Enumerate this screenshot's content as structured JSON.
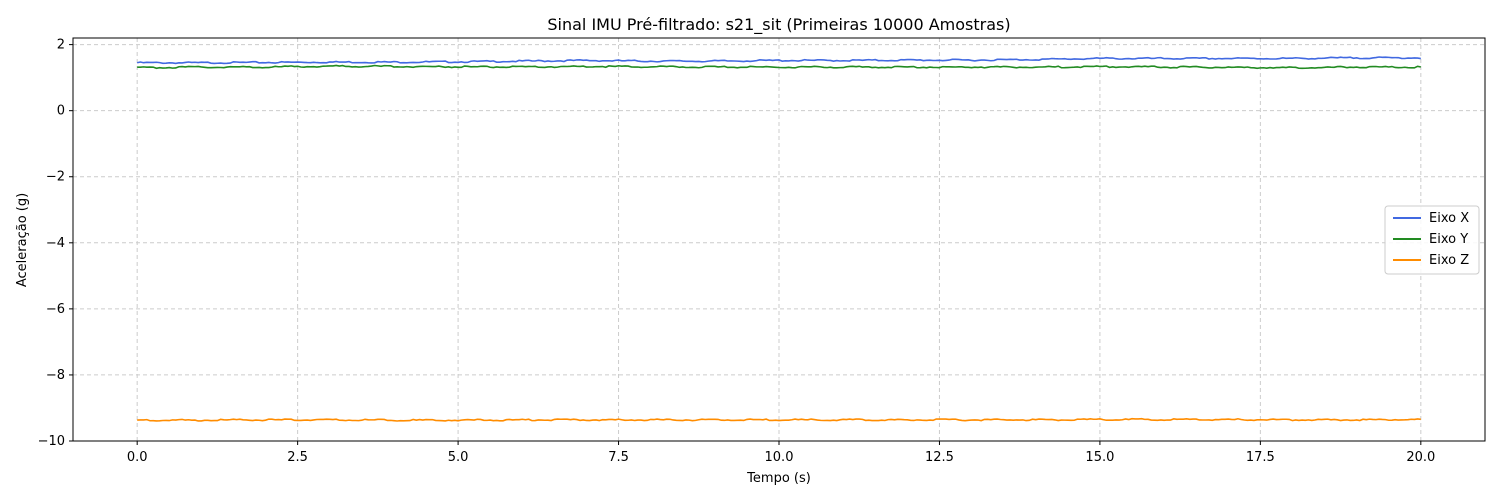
{
  "chart_data": {
    "type": "line",
    "title": "Sinal IMU Pré-filtrado: s21_sit (Primeiras 10000 Amostras)",
    "xlabel": "Tempo (s)",
    "ylabel": "Aceleração (g)",
    "xlim": [
      -1.0,
      21.0
    ],
    "ylim": [
      -10.0,
      2.2
    ],
    "xticks": [
      0.0,
      2.5,
      5.0,
      7.5,
      10.0,
      12.5,
      15.0,
      17.5,
      20.0
    ],
    "xtick_labels": [
      "0.0",
      "2.5",
      "5.0",
      "7.5",
      "10.0",
      "12.5",
      "15.0",
      "17.5",
      "20.0"
    ],
    "yticks": [
      2,
      0,
      -2,
      -4,
      -6,
      -8,
      -10
    ],
    "ytick_labels": [
      "2",
      "0",
      "−2",
      "−4",
      "−6",
      "−8",
      "−10"
    ],
    "grid": true,
    "legend_position": "center-right",
    "series": [
      {
        "name": "Eixo X",
        "color": "#4169e1",
        "x": [
          0,
          1,
          2,
          3,
          4,
          5,
          6,
          7,
          8,
          9,
          10,
          11,
          12,
          13,
          14,
          15,
          16,
          17,
          18,
          19,
          20
        ],
        "values": [
          1.45,
          1.45,
          1.46,
          1.47,
          1.47,
          1.48,
          1.5,
          1.52,
          1.5,
          1.5,
          1.52,
          1.52,
          1.53,
          1.53,
          1.55,
          1.58,
          1.58,
          1.58,
          1.58,
          1.6,
          1.6
        ]
      },
      {
        "name": "Eixo Y",
        "color": "#228b22",
        "x": [
          0,
          1,
          2,
          3,
          4,
          5,
          6,
          7,
          8,
          9,
          10,
          11,
          12,
          13,
          14,
          15,
          16,
          17,
          18,
          19,
          20
        ],
        "values": [
          1.3,
          1.32,
          1.32,
          1.35,
          1.34,
          1.33,
          1.32,
          1.34,
          1.33,
          1.32,
          1.32,
          1.32,
          1.32,
          1.32,
          1.32,
          1.33,
          1.32,
          1.31,
          1.3,
          1.32,
          1.32
        ]
      },
      {
        "name": "Eixo Z",
        "color": "#ff8c00",
        "x": [
          0,
          1,
          2,
          3,
          4,
          5,
          6,
          7,
          8,
          9,
          10,
          11,
          12,
          13,
          14,
          15,
          16,
          17,
          18,
          19,
          20
        ],
        "values": [
          -9.37,
          -9.37,
          -9.36,
          -9.36,
          -9.37,
          -9.37,
          -9.36,
          -9.36,
          -9.36,
          -9.36,
          -9.36,
          -9.36,
          -9.36,
          -9.36,
          -9.36,
          -9.35,
          -9.35,
          -9.35,
          -9.36,
          -9.36,
          -9.35
        ]
      }
    ]
  }
}
